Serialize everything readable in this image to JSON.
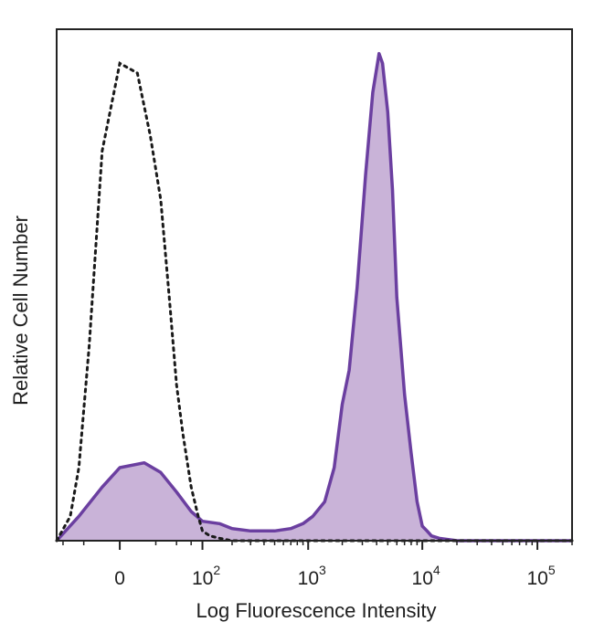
{
  "chart_data": {
    "type": "area",
    "xlabel": "Log Fluorescence Intensity",
    "ylabel": "Relative Cell Number",
    "x_scale": "biexponential",
    "xlim": [
      -60,
      200000
    ],
    "ylim": [
      0,
      1.05
    ],
    "grid": false,
    "legend": "none",
    "x_ticks": [
      {
        "value": 0,
        "label": "0",
        "exp": ""
      },
      {
        "value": 100,
        "label": "10",
        "exp": "2"
      },
      {
        "value": 1000,
        "label": "10",
        "exp": "3"
      },
      {
        "value": 10000,
        "label": "10",
        "exp": "4"
      },
      {
        "value": 100000,
        "label": "10",
        "exp": "5"
      }
    ],
    "series": [
      {
        "style": "filled",
        "color": "#6b3fa0",
        "fill": "#c9b3d8",
        "x": [
          -60,
          -30,
          -10,
          0,
          15,
          30,
          50,
          75,
          100,
          150,
          200,
          300,
          500,
          700,
          900,
          1100,
          1400,
          1700,
          2000,
          2300,
          2700,
          3200,
          3700,
          4200,
          4500,
          5000,
          5500,
          6000,
          7000,
          8000,
          9000,
          10000,
          11000,
          12000,
          14000,
          20000,
          50000,
          100000,
          200000
        ],
        "values": [
          0.0,
          0.05,
          0.11,
          0.15,
          0.16,
          0.14,
          0.1,
          0.06,
          0.04,
          0.035,
          0.025,
          0.02,
          0.02,
          0.025,
          0.035,
          0.05,
          0.08,
          0.15,
          0.28,
          0.35,
          0.52,
          0.75,
          0.92,
          1.0,
          0.98,
          0.88,
          0.72,
          0.5,
          0.3,
          0.18,
          0.08,
          0.03,
          0.02,
          0.01,
          0.005,
          0.0,
          0.0,
          0.0,
          0.0
        ]
      },
      {
        "style": "dotted",
        "color": "#1a1a1a",
        "x": [
          -60,
          -40,
          -30,
          -20,
          -10,
          0,
          10,
          20,
          30,
          40,
          50,
          60,
          75,
          90,
          100,
          120,
          150,
          200,
          300,
          1000,
          10000,
          100000,
          200000
        ],
        "values": [
          0.0,
          0.05,
          0.15,
          0.4,
          0.8,
          0.98,
          0.96,
          0.83,
          0.7,
          0.5,
          0.32,
          0.22,
          0.11,
          0.05,
          0.02,
          0.01,
          0.005,
          0.0,
          0.0,
          0.0,
          0.0,
          0.0,
          0.0
        ]
      }
    ]
  }
}
